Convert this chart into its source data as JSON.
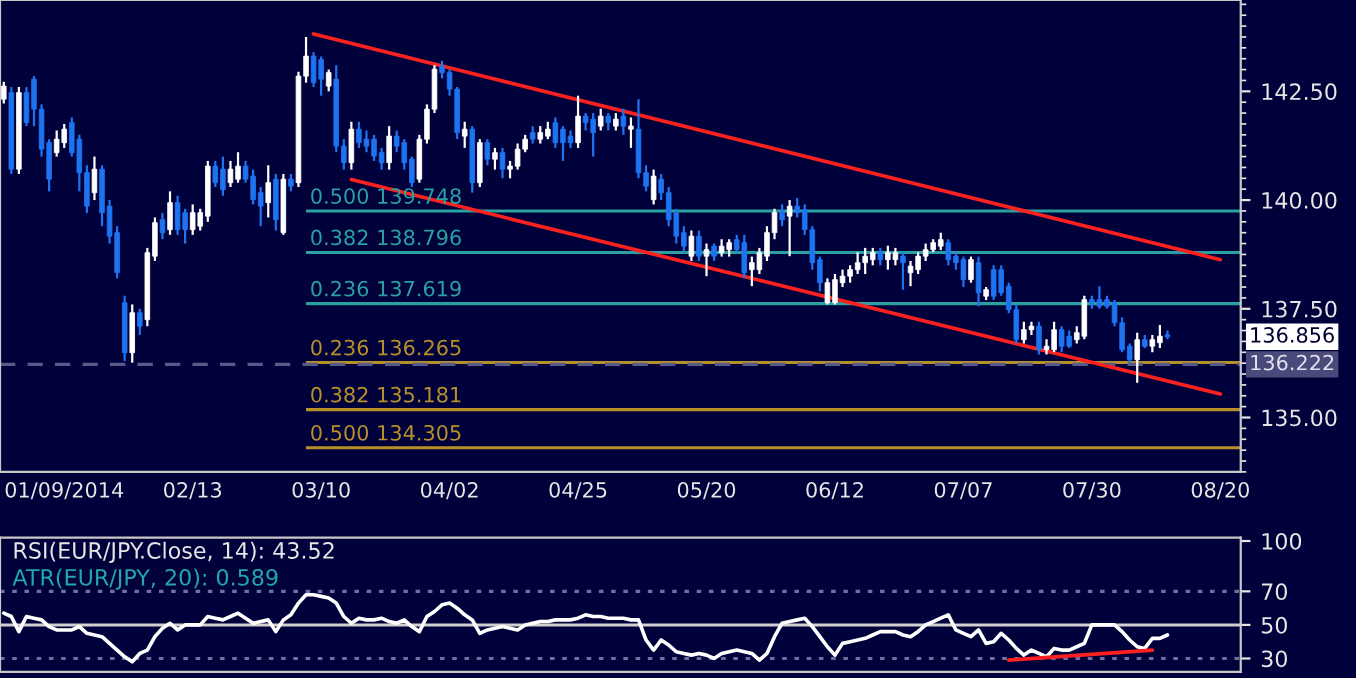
{
  "chart_data": [
    {
      "type": "candlestick",
      "categories": [
        null,
        null,
        null,
        null,
        null,
        null,
        null,
        null,
        "01/09/2014",
        null,
        null,
        null,
        null,
        null,
        null,
        null,
        null,
        null,
        null,
        null,
        null,
        null,
        null,
        null,
        null,
        "02/13",
        null,
        null,
        null,
        null,
        null,
        null,
        null,
        null,
        null,
        null,
        null,
        null,
        null,
        null,
        null,
        null,
        "03/10",
        null,
        null,
        null,
        null,
        null,
        null,
        null,
        null,
        null,
        null,
        null,
        null,
        null,
        null,
        null,
        null,
        "04/02",
        null,
        null,
        null,
        null,
        null,
        null,
        null,
        null,
        null,
        null,
        null,
        null,
        null,
        null,
        null,
        null,
        "04/25",
        null,
        null,
        null,
        null,
        null,
        null,
        null,
        null,
        null,
        null,
        null,
        null,
        null,
        null,
        null,
        null,
        "05/20",
        null,
        null,
        null,
        null,
        null,
        null,
        null,
        null,
        null,
        null,
        null,
        null,
        null,
        null,
        null,
        null,
        "06/12",
        null,
        null,
        null,
        null,
        null,
        null,
        null,
        null,
        null,
        null,
        null,
        null,
        null,
        null,
        null,
        null,
        "07/07",
        null,
        null,
        null,
        null,
        null,
        null,
        null,
        null,
        null,
        null,
        null,
        null,
        null,
        null,
        null,
        null,
        "07/30",
        null,
        null,
        null,
        null,
        null,
        null,
        null,
        null,
        null,
        null,
        null,
        null,
        null,
        null,
        null,
        null,
        "08/20"
      ],
      "ohlc": [
        [
          142.32,
          142.72,
          142.22,
          142.62
        ],
        [
          142.47,
          142.6,
          140.6,
          140.71
        ],
        [
          140.71,
          142.6,
          140.6,
          142.47
        ],
        [
          142.47,
          142.6,
          141.7,
          141.78
        ],
        [
          142.78,
          142.85,
          141.7,
          142.09
        ],
        [
          142.09,
          142.2,
          141.0,
          141.17
        ],
        [
          141.32,
          141.4,
          140.2,
          140.48
        ],
        [
          141.09,
          141.6,
          141.0,
          141.4
        ],
        [
          141.32,
          141.75,
          141.2,
          141.63
        ],
        [
          141.78,
          141.9,
          141.0,
          141.09
        ],
        [
          141.4,
          141.5,
          140.2,
          140.63
        ],
        [
          140.63,
          140.8,
          139.7,
          139.86
        ],
        [
          140.17,
          141.0,
          140.0,
          140.71
        ],
        [
          140.71,
          140.8,
          139.4,
          139.71
        ],
        [
          139.86,
          140.0,
          139.0,
          139.17
        ],
        [
          139.25,
          139.4,
          138.2,
          138.33
        ],
        [
          137.64,
          137.8,
          136.3,
          136.49
        ],
        [
          136.49,
          137.6,
          136.26,
          137.41
        ],
        [
          137.41,
          137.5,
          136.9,
          137.1
        ],
        [
          137.25,
          138.9,
          137.1,
          138.79
        ],
        [
          138.71,
          139.6,
          138.6,
          139.48
        ],
        [
          139.55,
          139.7,
          139.1,
          139.25
        ],
        [
          139.32,
          140.2,
          139.2,
          139.94
        ],
        [
          139.94,
          140.1,
          139.2,
          139.32
        ],
        [
          139.71,
          139.8,
          139.0,
          139.32
        ],
        [
          139.32,
          139.9,
          139.2,
          139.71
        ],
        [
          139.4,
          139.8,
          139.3,
          139.71
        ],
        [
          139.63,
          140.9,
          139.5,
          140.78
        ],
        [
          140.78,
          140.9,
          140.3,
          140.4
        ],
        [
          140.71,
          141.0,
          140.1,
          140.24
        ],
        [
          140.4,
          140.9,
          140.3,
          140.71
        ],
        [
          140.48,
          141.1,
          140.4,
          140.78
        ],
        [
          140.78,
          140.9,
          140.4,
          140.48
        ],
        [
          140.55,
          140.7,
          139.9,
          140.01
        ],
        [
          140.17,
          140.3,
          139.4,
          139.86
        ],
        [
          139.94,
          140.8,
          139.6,
          140.4
        ],
        [
          140.48,
          140.6,
          139.3,
          139.55
        ],
        [
          139.25,
          140.6,
          139.2,
          140.48
        ],
        [
          140.48,
          140.6,
          140.2,
          140.32
        ],
        [
          140.4,
          142.95,
          140.3,
          142.85
        ],
        [
          142.85,
          143.75,
          142.7,
          143.31
        ],
        [
          143.31,
          143.4,
          142.6,
          142.7
        ],
        [
          143.23,
          143.3,
          142.4,
          142.78
        ],
        [
          142.62,
          143.0,
          142.5,
          142.93
        ],
        [
          142.78,
          143.1,
          141.1,
          141.24
        ],
        [
          141.24,
          141.4,
          140.7,
          140.86
        ],
        [
          140.86,
          141.8,
          140.7,
          141.63
        ],
        [
          141.63,
          141.8,
          141.2,
          141.32
        ],
        [
          141.4,
          141.6,
          141.1,
          141.24
        ],
        [
          141.4,
          141.5,
          140.9,
          141.01
        ],
        [
          141.09,
          141.2,
          140.7,
          140.86
        ],
        [
          140.86,
          141.7,
          140.7,
          141.47
        ],
        [
          141.47,
          141.6,
          141.1,
          141.24
        ],
        [
          141.32,
          141.4,
          140.7,
          140.86
        ],
        [
          140.94,
          141.0,
          140.3,
          140.4
        ],
        [
          140.48,
          141.5,
          140.4,
          141.4
        ],
        [
          141.4,
          142.2,
          141.3,
          142.09
        ],
        [
          142.09,
          143.1,
          142.0,
          143.01
        ],
        [
          143.08,
          143.2,
          142.8,
          142.93
        ],
        [
          142.93,
          143.0,
          142.4,
          142.55
        ],
        [
          142.55,
          142.6,
          141.4,
          141.55
        ],
        [
          141.47,
          141.8,
          141.2,
          141.63
        ],
        [
          141.63,
          141.7,
          140.17,
          140.4
        ],
        [
          140.4,
          141.4,
          140.3,
          141.32
        ],
        [
          141.32,
          141.4,
          140.8,
          140.94
        ],
        [
          140.94,
          141.2,
          140.7,
          141.09
        ],
        [
          141.09,
          141.2,
          140.5,
          140.71
        ],
        [
          140.71,
          140.9,
          140.5,
          140.78
        ],
        [
          140.78,
          141.3,
          140.7,
          141.17
        ],
        [
          141.17,
          141.5,
          141.1,
          141.4
        ],
        [
          141.55,
          141.7,
          141.3,
          141.4
        ],
        [
          141.4,
          141.7,
          141.3,
          141.55
        ],
        [
          141.47,
          141.8,
          141.4,
          141.63
        ],
        [
          141.78,
          141.9,
          141.2,
          141.32
        ],
        [
          141.63,
          141.7,
          140.9,
          141.32
        ],
        [
          141.47,
          141.6,
          141.2,
          141.32
        ],
        [
          141.32,
          142.4,
          141.2,
          141.93
        ],
        [
          141.93,
          142.0,
          141.6,
          141.78
        ],
        [
          141.86,
          142.0,
          141.0,
          141.55
        ],
        [
          141.7,
          142.1,
          141.6,
          141.93
        ],
        [
          141.93,
          142.0,
          141.6,
          141.78
        ],
        [
          141.7,
          142.0,
          141.6,
          141.86
        ],
        [
          141.93,
          142.1,
          141.5,
          141.7
        ],
        [
          141.63,
          141.9,
          141.2,
          141.7
        ],
        [
          141.63,
          142.32,
          140.5,
          140.63
        ],
        [
          140.63,
          140.8,
          140.2,
          140.32
        ],
        [
          140.01,
          140.7,
          139.9,
          140.55
        ],
        [
          140.48,
          140.6,
          140.0,
          140.17
        ],
        [
          140.17,
          140.3,
          139.4,
          139.55
        ],
        [
          139.71,
          139.8,
          139.0,
          139.17
        ],
        [
          139.25,
          139.4,
          138.8,
          138.94
        ],
        [
          138.71,
          139.3,
          138.6,
          139.17
        ],
        [
          139.17,
          139.3,
          138.6,
          138.71
        ],
        [
          138.71,
          139.0,
          138.25,
          138.86
        ],
        [
          138.94,
          139.0,
          138.6,
          138.71
        ],
        [
          138.79,
          139.1,
          138.7,
          138.94
        ],
        [
          138.86,
          139.1,
          138.7,
          139.02
        ],
        [
          139.09,
          139.2,
          138.8,
          138.86
        ],
        [
          139.02,
          139.2,
          138.2,
          138.33
        ],
        [
          138.4,
          138.7,
          138.02,
          138.56
        ],
        [
          138.4,
          138.9,
          138.3,
          138.79
        ],
        [
          138.71,
          139.4,
          138.6,
          139.25
        ],
        [
          139.25,
          139.8,
          139.1,
          139.71
        ],
        [
          139.71,
          139.9,
          139.4,
          139.55
        ],
        [
          139.63,
          140.0,
          138.71,
          139.86
        ],
        [
          139.86,
          140.05,
          139.6,
          139.71
        ],
        [
          139.78,
          139.9,
          139.2,
          139.32
        ],
        [
          139.32,
          139.4,
          138.4,
          138.56
        ],
        [
          138.63,
          138.7,
          137.9,
          138.1
        ],
        [
          137.64,
          138.2,
          137.6,
          138.1
        ],
        [
          137.64,
          138.3,
          137.6,
          138.17
        ],
        [
          138.1,
          138.4,
          138.0,
          138.25
        ],
        [
          138.25,
          138.5,
          138.1,
          138.4
        ],
        [
          138.4,
          138.8,
          138.3,
          138.56
        ],
        [
          138.56,
          138.9,
          138.3,
          138.71
        ],
        [
          138.63,
          138.9,
          138.5,
          138.79
        ],
        [
          138.79,
          138.9,
          138.5,
          138.63
        ],
        [
          138.63,
          138.95,
          138.4,
          138.79
        ],
        [
          138.63,
          138.9,
          138.5,
          138.79
        ],
        [
          138.71,
          138.8,
          137.94,
          138.56
        ],
        [
          138.33,
          138.6,
          138.02,
          138.48
        ],
        [
          138.4,
          138.8,
          138.3,
          138.71
        ],
        [
          138.71,
          139.0,
          138.6,
          138.86
        ],
        [
          138.86,
          139.1,
          138.8,
          139.02
        ],
        [
          138.94,
          139.25,
          138.85,
          139.09
        ],
        [
          139.02,
          139.1,
          138.5,
          138.63
        ],
        [
          138.71,
          138.8,
          138.4,
          138.56
        ],
        [
          138.63,
          138.7,
          138.0,
          138.17
        ],
        [
          138.17,
          138.7,
          138.1,
          138.63
        ],
        [
          138.56,
          138.7,
          137.56,
          137.87
        ],
        [
          137.79,
          138.0,
          137.7,
          137.94
        ],
        [
          138.4,
          138.5,
          137.7,
          137.79
        ],
        [
          138.4,
          138.5,
          137.8,
          137.87
        ],
        [
          138.02,
          138.1,
          137.4,
          137.48
        ],
        [
          137.48,
          137.6,
          136.7,
          136.79
        ],
        [
          136.79,
          137.2,
          136.7,
          137.02
        ],
        [
          137.02,
          137.2,
          136.9,
          137.1
        ],
        [
          137.1,
          137.2,
          136.45,
          136.56
        ],
        [
          136.56,
          136.8,
          136.45,
          136.64
        ],
        [
          136.56,
          137.2,
          136.5,
          137.02
        ],
        [
          137.02,
          137.1,
          136.5,
          136.64
        ],
        [
          136.87,
          137.0,
          136.6,
          136.64
        ],
        [
          136.79,
          137.1,
          136.7,
          136.95
        ],
        [
          136.87,
          137.8,
          136.8,
          137.71
        ],
        [
          137.71,
          137.8,
          137.5,
          137.64
        ],
        [
          137.71,
          138.02,
          137.5,
          137.56
        ],
        [
          137.71,
          137.8,
          137.5,
          137.56
        ],
        [
          137.64,
          137.7,
          137.1,
          137.18
        ],
        [
          137.18,
          137.3,
          136.5,
          136.56
        ],
        [
          136.64,
          136.7,
          136.25,
          136.33
        ],
        [
          136.33,
          136.95,
          135.8,
          136.79
        ],
        [
          136.79,
          136.9,
          136.6,
          136.64
        ],
        [
          136.64,
          136.9,
          136.5,
          136.79
        ],
        [
          136.72,
          137.13,
          136.6,
          136.87
        ],
        [
          136.9,
          137.0,
          136.8,
          136.856
        ],
        null,
        null,
        null,
        null,
        null,
        null,
        null
      ],
      "colors": [
        "#ffffff",
        "#1e73f0",
        "#ffffff",
        "#1e73f0",
        "#1e73f0",
        "#1e73f0",
        "#1e73f0",
        "#ffffff",
        "#ffffff",
        "#1e73f0",
        "#1e73f0",
        "#1e73f0",
        "#ffffff",
        "#1e73f0",
        "#1e73f0",
        "#1e73f0",
        "#1e73f0",
        "#ffffff",
        "#1e73f0",
        "#ffffff",
        "#ffffff",
        "#1e73f0",
        "#ffffff",
        "#1e73f0",
        "#1e73f0",
        "#ffffff",
        "#ffffff",
        "#ffffff",
        "#1e73f0",
        "#1e73f0",
        "#ffffff",
        "#ffffff",
        "#1e73f0",
        "#1e73f0",
        "#1e73f0",
        "#ffffff",
        "#1e73f0",
        "#ffffff",
        "#1e73f0",
        "#ffffff",
        "#ffffff",
        "#1e73f0",
        "#1e73f0",
        "#ffffff",
        "#1e73f0",
        "#1e73f0",
        "#ffffff",
        "#1e73f0",
        "#1e73f0",
        "#1e73f0",
        "#1e73f0",
        "#ffffff",
        "#1e73f0",
        "#1e73f0",
        "#1e73f0",
        "#ffffff",
        "#ffffff",
        "#ffffff",
        "#1e73f0",
        "#1e73f0",
        "#1e73f0",
        "#ffffff",
        "#1e73f0",
        "#ffffff",
        "#1e73f0",
        "#ffffff",
        "#1e73f0",
        "#ffffff",
        "#ffffff",
        "#ffffff",
        "#1e73f0",
        "#ffffff",
        "#ffffff",
        "#1e73f0",
        "#1e73f0",
        "#1e73f0",
        "#ffffff",
        "#1e73f0",
        "#1e73f0",
        "#ffffff",
        "#1e73f0",
        "#ffffff",
        "#1e73f0",
        "#ffffff",
        "#1e73f0",
        "#1e73f0",
        "#ffffff",
        "#1e73f0",
        "#1e73f0",
        "#1e73f0",
        "#1e73f0",
        "#ffffff",
        "#1e73f0",
        "#ffffff",
        "#1e73f0",
        "#ffffff",
        "#ffffff",
        "#1e73f0",
        "#1e73f0",
        "#ffffff",
        "#ffffff",
        "#ffffff",
        "#ffffff",
        "#1e73f0",
        "#ffffff",
        "#1e73f0",
        "#1e73f0",
        "#1e73f0",
        "#1e73f0",
        "#ffffff",
        "#ffffff",
        "#ffffff",
        "#ffffff",
        "#ffffff",
        "#ffffff",
        "#ffffff",
        "#1e73f0",
        "#ffffff",
        "#ffffff",
        "#1e73f0",
        "#ffffff",
        "#ffffff",
        "#ffffff",
        "#ffffff",
        "#ffffff",
        "#1e73f0",
        "#1e73f0",
        "#1e73f0",
        "#ffffff",
        "#1e73f0",
        "#ffffff",
        "#1e73f0",
        "#1e73f0",
        "#1e73f0",
        "#1e73f0",
        "#ffffff",
        "#ffffff",
        "#1e73f0",
        "#ffffff",
        "#ffffff",
        "#1e73f0",
        "#1e73f0",
        "#ffffff",
        "#ffffff",
        "#1e73f0",
        "#1e73f0",
        "#1e73f0",
        "#1e73f0",
        "#1e73f0",
        "#1e73f0",
        "#ffffff",
        "#1e73f0",
        "#ffffff",
        "#ffffff",
        "#1e73f0",
        null,
        null,
        null,
        null,
        null,
        null,
        null
      ],
      "series": [
        {
          "type": "line",
          "color": "#ff2020",
          "values": [
            null,
            null,
            null,
            null,
            null,
            null,
            null,
            null,
            null,
            null,
            null,
            null,
            null,
            null,
            null,
            null,
            null,
            null,
            null,
            null,
            null,
            null,
            null,
            null,
            null,
            null,
            null,
            null,
            null,
            null,
            null,
            null,
            null,
            null,
            null,
            null,
            null,
            null,
            null,
            null,
            null,
            143.82,
            null,
            null,
            null,
            null,
            null,
            null,
            null,
            null,
            null,
            null,
            null,
            null,
            null,
            null,
            null,
            null,
            null,
            null,
            null,
            null,
            null,
            null,
            null,
            null,
            null,
            null,
            null,
            null,
            null,
            null,
            null,
            null,
            null,
            null,
            null,
            null,
            null,
            null,
            null,
            null,
            null,
            null,
            null,
            null,
            null,
            null,
            null,
            null,
            null,
            null,
            null,
            null,
            null,
            null,
            null,
            null,
            null,
            null,
            null,
            null,
            null,
            null,
            null,
            null,
            null,
            null,
            null,
            null,
            null,
            null,
            null,
            null,
            null,
            null,
            null,
            null,
            null,
            null,
            null,
            null,
            null,
            null,
            null,
            null,
            null,
            null,
            null,
            null,
            null,
            null,
            null,
            null,
            null,
            null,
            null,
            null,
            null,
            null,
            null,
            null,
            null,
            null,
            null,
            null,
            null,
            null,
            null,
            null,
            null,
            null,
            null,
            null,
            null,
            null,
            null,
            null,
            null,
            null,
            null,
            138.63
          ]
        },
        {
          "type": "line",
          "color": "#ff2020",
          "values": [
            null,
            null,
            null,
            null,
            null,
            null,
            null,
            null,
            null,
            null,
            null,
            null,
            null,
            null,
            null,
            null,
            null,
            null,
            null,
            null,
            null,
            null,
            null,
            null,
            null,
            null,
            null,
            null,
            null,
            null,
            null,
            null,
            null,
            null,
            null,
            null,
            null,
            null,
            null,
            null,
            null,
            null,
            null,
            null,
            null,
            null,
            140.47,
            null,
            null,
            null,
            null,
            null,
            null,
            null,
            null,
            null,
            null,
            null,
            null,
            null,
            null,
            null,
            null,
            null,
            null,
            null,
            null,
            null,
            null,
            null,
            null,
            null,
            null,
            null,
            null,
            null,
            null,
            null,
            null,
            null,
            null,
            null,
            null,
            null,
            null,
            null,
            null,
            null,
            null,
            null,
            null,
            null,
            null,
            null,
            null,
            null,
            null,
            null,
            null,
            null,
            null,
            null,
            null,
            null,
            null,
            null,
            null,
            null,
            null,
            null,
            null,
            null,
            null,
            null,
            null,
            null,
            null,
            null,
            null,
            null,
            null,
            null,
            null,
            null,
            null,
            null,
            null,
            null,
            null,
            null,
            null,
            null,
            null,
            null,
            null,
            null,
            null,
            null,
            null,
            null,
            null,
            null,
            null,
            null,
            null,
            null,
            null,
            null,
            null,
            null,
            null,
            null,
            null,
            null,
            null,
            null,
            null,
            null,
            null,
            null,
            null,
            135.54
          ]
        }
      ],
      "ylim": [
        133.75,
        144.6
      ],
      "yticks": [
        {
          "value": 135,
          "label": "135.00"
        },
        {
          "value": 137.5,
          "label": "137.50"
        },
        {
          "value": 140,
          "label": "140.00"
        },
        {
          "value": 142.5,
          "label": "142.50"
        }
      ],
      "ref_lines": [
        {
          "axis": "y",
          "value": 139.748,
          "label": "0.500 139.748",
          "color": "#2aa0a0"
        },
        {
          "axis": "y",
          "value": 138.796,
          "label": "0.382 138.796",
          "color": "#2aa0a0"
        },
        {
          "axis": "y",
          "value": 137.619,
          "label": "0.236 137.619",
          "color": "#2aa0a0"
        },
        {
          "axis": "y",
          "value": 136.265,
          "label": "0.236 136.265",
          "color": "#b8902a"
        },
        {
          "axis": "y",
          "value": 135.181,
          "label": "0.382 135.181",
          "color": "#b8902a"
        },
        {
          "axis": "y",
          "value": 134.305,
          "label": "0.500 134.305",
          "color": "#b8902a"
        },
        {
          "axis": "y",
          "value": 136.222,
          "label": "136.222",
          "color": "#5a5a8a",
          "line_style": "dashed"
        }
      ],
      "annotations": [
        "136.856"
      ]
    },
    {
      "type": "line",
      "series": [
        {
          "color": "#ffffff",
          "values": [
            57,
            55,
            46,
            55,
            54,
            53,
            49,
            47,
            47,
            47,
            49,
            45,
            44,
            43,
            39,
            35,
            31,
            28,
            33,
            35,
            43,
            48,
            51,
            47,
            50,
            50,
            50,
            55,
            54,
            53,
            55,
            57,
            54,
            51,
            52,
            53,
            46,
            53,
            56,
            63,
            68,
            68,
            67,
            66,
            63,
            55,
            51,
            54,
            53,
            53,
            54,
            52,
            51,
            53,
            49,
            46,
            55,
            58,
            62,
            63,
            60,
            56,
            53,
            45,
            47,
            48,
            49,
            48,
            47,
            50,
            51,
            52,
            52,
            53,
            53,
            53,
            54,
            56,
            55,
            55,
            54,
            54,
            54,
            53,
            53,
            41,
            35,
            41,
            38,
            34,
            33,
            32,
            33,
            32,
            30,
            33,
            34,
            35,
            34,
            33,
            29,
            33,
            43,
            51,
            52,
            53,
            54,
            49,
            43,
            37,
            32,
            39,
            40,
            41,
            42,
            44,
            46,
            46,
            46,
            44,
            43,
            46,
            50,
            52,
            54,
            56,
            47,
            45,
            43,
            47,
            39,
            40,
            45,
            41,
            36,
            32,
            35,
            33,
            31,
            36,
            35,
            35,
            37,
            39,
            50,
            50,
            50,
            50,
            46,
            41,
            37,
            36,
            42,
            42,
            44,
            null,
            null,
            null,
            null,
            null,
            null,
            null
          ]
        },
        {
          "color": "#ff2020",
          "values": [
            null,
            null,
            null,
            null,
            null,
            null,
            null,
            null,
            null,
            null,
            null,
            null,
            null,
            null,
            null,
            null,
            null,
            null,
            null,
            null,
            null,
            null,
            null,
            null,
            null,
            null,
            null,
            null,
            null,
            null,
            null,
            null,
            null,
            null,
            null,
            null,
            null,
            null,
            null,
            null,
            null,
            null,
            null,
            null,
            null,
            null,
            null,
            null,
            null,
            null,
            null,
            null,
            null,
            null,
            null,
            null,
            null,
            null,
            null,
            null,
            null,
            null,
            null,
            null,
            null,
            null,
            null,
            null,
            null,
            null,
            null,
            null,
            null,
            null,
            null,
            null,
            null,
            null,
            null,
            null,
            null,
            null,
            null,
            null,
            null,
            null,
            null,
            null,
            null,
            null,
            null,
            null,
            null,
            null,
            null,
            null,
            null,
            null,
            null,
            null,
            null,
            null,
            null,
            null,
            null,
            null,
            null,
            null,
            null,
            null,
            null,
            null,
            null,
            null,
            null,
            null,
            null,
            null,
            null,
            null,
            null,
            null,
            null,
            null,
            null,
            null,
            null,
            null,
            null,
            null,
            null,
            null,
            null,
            29,
            null,
            null,
            null,
            null,
            null,
            null,
            null,
            null,
            null,
            null,
            null,
            null,
            null,
            null,
            null,
            null,
            null,
            null,
            35,
            null,
            null,
            null,
            null,
            null,
            null,
            null,
            null,
            null
          ]
        }
      ],
      "categories": [
        null,
        null,
        null,
        null,
        null,
        null,
        null,
        null,
        null,
        null,
        null,
        null,
        null,
        null,
        null,
        null,
        null,
        null,
        null,
        null,
        null,
        null,
        null,
        null,
        null,
        null,
        null,
        null,
        null,
        null,
        null,
        null,
        null,
        null,
        null,
        null,
        null,
        null,
        null,
        null,
        null,
        null,
        null,
        null,
        null,
        null,
        null,
        null,
        null,
        null,
        null,
        null,
        null,
        null,
        null,
        null,
        null,
        null,
        null,
        null,
        null,
        null,
        null,
        null,
        null,
        null,
        null,
        null,
        null,
        null,
        null,
        null,
        null,
        null,
        null,
        null,
        null,
        null,
        null,
        null,
        null,
        null,
        null,
        null,
        null,
        null,
        null,
        null,
        null,
        null,
        null,
        null,
        null,
        null,
        null,
        null,
        null,
        null,
        null,
        null,
        null,
        null,
        null,
        null,
        null,
        null,
        null,
        null,
        null,
        null,
        null,
        null,
        null,
        null,
        null,
        null,
        null,
        null,
        null,
        null,
        null,
        null,
        null,
        null,
        null,
        null,
        null,
        null,
        null,
        null,
        null,
        null,
        null,
        null,
        null,
        null,
        null,
        null,
        null,
        null,
        null,
        null,
        null,
        null,
        null,
        null,
        null,
        null,
        null,
        null,
        null,
        null,
        null,
        null,
        null,
        null,
        null,
        null,
        null,
        null,
        null,
        null
      ],
      "ylim": [
        22,
        102
      ],
      "yticks": [
        30,
        50,
        70,
        100
      ],
      "tick_labels": "y",
      "ref_lines": [
        {
          "axis": "y",
          "value": 70,
          "color": "#7070a0",
          "line_style": "dotted"
        },
        {
          "axis": "y",
          "value": 50,
          "color": "#d0d0d0"
        },
        {
          "axis": "y",
          "value": 30,
          "color": "#7070a0",
          "line_style": "dotted"
        }
      ],
      "annotations": [
        "RSI(EUR/JPY.Close, 14): 43.52",
        "ATR(EUR/JPY, 20): 0.589"
      ]
    }
  ]
}
